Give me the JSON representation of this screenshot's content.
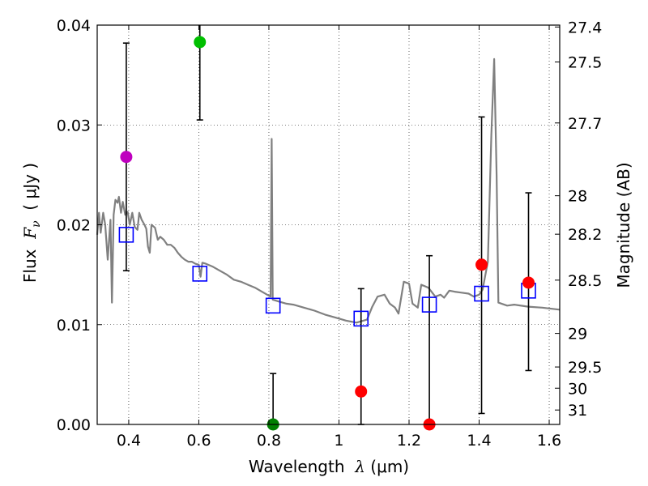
{
  "chart_data": {
    "type": "scatter",
    "xlabel": "Wavelength",
    "xlabel_symbol": "λ",
    "xlabel_unit": "(μm)",
    "ylabel": "Flux",
    "ylabel_symbol": "F",
    "ylabel_sub": "ν",
    "ylabel_unit": "( μJy )",
    "ylabel_right": "Magnitude (AB)",
    "xlim": [
      0.31,
      1.63
    ],
    "ylim": [
      0,
      0.04
    ],
    "grid": true,
    "x_ticks": [
      {
        "value": 0.4,
        "label": "0.4"
      },
      {
        "value": 0.6,
        "label": "0.6"
      },
      {
        "value": 0.8,
        "label": "0.8"
      },
      {
        "value": 1.0,
        "label": "1"
      },
      {
        "value": 1.2,
        "label": "1.2"
      },
      {
        "value": 1.4,
        "label": "1.4"
      },
      {
        "value": 1.6,
        "label": "1.6"
      }
    ],
    "y_ticks": [
      {
        "value": 0.0,
        "label": "0.00"
      },
      {
        "value": 0.01,
        "label": "0.01"
      },
      {
        "value": 0.02,
        "label": "0.02"
      },
      {
        "value": 0.03,
        "label": "0.03"
      },
      {
        "value": 0.04,
        "label": "0.04"
      }
    ],
    "mag_ticks": [
      {
        "mag": 27.4,
        "label": "27.4"
      },
      {
        "mag": 27.5,
        "label": "27.5"
      },
      {
        "mag": 27.7,
        "label": "27.7"
      },
      {
        "mag": 28,
        "label": "28"
      },
      {
        "mag": 28.2,
        "label": "28.2"
      },
      {
        "mag": 28.5,
        "label": "28.5"
      },
      {
        "mag": 29,
        "label": "29"
      },
      {
        "mag": 29.5,
        "label": "29.5"
      },
      {
        "mag": 30,
        "label": "30"
      },
      {
        "mag": 31,
        "label": "31"
      }
    ],
    "observed": [
      {
        "x": 0.393,
        "y": 0.0268,
        "err_lo": 0.0154,
        "err_hi": 0.0382,
        "color": "#bf00bf"
      },
      {
        "x": 0.603,
        "y": 0.0383,
        "err_lo": 0.0305,
        "err_hi": 0.0405,
        "color": "#00bf00"
      },
      {
        "x": 0.812,
        "y": 0.0,
        "err_lo": 0.0,
        "err_hi": 0.0051,
        "color": "#008000"
      },
      {
        "x": 1.063,
        "y": 0.0033,
        "err_lo": 0.0,
        "err_hi": 0.0136,
        "color": "#ff0000"
      },
      {
        "x": 1.258,
        "y": 0.0,
        "err_lo": 0.0,
        "err_hi": 0.0169,
        "color": "#ff0000"
      },
      {
        "x": 1.407,
        "y": 0.016,
        "err_lo": 0.0011,
        "err_hi": 0.0308,
        "color": "#ff0000"
      },
      {
        "x": 1.541,
        "y": 0.0142,
        "err_lo": 0.0054,
        "err_hi": 0.0232,
        "color": "#ff0000"
      }
    ],
    "model_photometry": [
      {
        "x": 0.393,
        "y": 0.019
      },
      {
        "x": 0.603,
        "y": 0.0151
      },
      {
        "x": 0.812,
        "y": 0.0119
      },
      {
        "x": 1.063,
        "y": 0.0106
      },
      {
        "x": 1.258,
        "y": 0.012
      },
      {
        "x": 1.407,
        "y": 0.0131
      },
      {
        "x": 1.541,
        "y": 0.0134
      }
    ],
    "sed_line": [
      [
        0.31,
        0.019
      ],
      [
        0.315,
        0.0212
      ],
      [
        0.32,
        0.0192
      ],
      [
        0.327,
        0.0212
      ],
      [
        0.333,
        0.02
      ],
      [
        0.34,
        0.0165
      ],
      [
        0.348,
        0.0205
      ],
      [
        0.352,
        0.0122
      ],
      [
        0.357,
        0.021
      ],
      [
        0.362,
        0.0225
      ],
      [
        0.368,
        0.0222
      ],
      [
        0.372,
        0.0228
      ],
      [
        0.378,
        0.0212
      ],
      [
        0.383,
        0.0223
      ],
      [
        0.39,
        0.021
      ],
      [
        0.397,
        0.0213
      ],
      [
        0.403,
        0.02
      ],
      [
        0.41,
        0.0212
      ],
      [
        0.417,
        0.0198
      ],
      [
        0.425,
        0.0195
      ],
      [
        0.43,
        0.0212
      ],
      [
        0.437,
        0.0205
      ],
      [
        0.445,
        0.02
      ],
      [
        0.45,
        0.0196
      ],
      [
        0.455,
        0.0178
      ],
      [
        0.46,
        0.0172
      ],
      [
        0.465,
        0.02
      ],
      [
        0.475,
        0.0197
      ],
      [
        0.483,
        0.0185
      ],
      [
        0.49,
        0.0188
      ],
      [
        0.5,
        0.0185
      ],
      [
        0.51,
        0.018
      ],
      [
        0.52,
        0.018
      ],
      [
        0.53,
        0.0177
      ],
      [
        0.54,
        0.0172
      ],
      [
        0.55,
        0.0168
      ],
      [
        0.56,
        0.0165
      ],
      [
        0.57,
        0.0163
      ],
      [
        0.58,
        0.0163
      ],
      [
        0.59,
        0.0161
      ],
      [
        0.6,
        0.016
      ],
      [
        0.605,
        0.0148
      ],
      [
        0.61,
        0.0162
      ],
      [
        0.62,
        0.0161
      ],
      [
        0.64,
        0.0158
      ],
      [
        0.66,
        0.0154
      ],
      [
        0.68,
        0.015
      ],
      [
        0.7,
        0.0145
      ],
      [
        0.72,
        0.0143
      ],
      [
        0.74,
        0.014
      ],
      [
        0.76,
        0.0137
      ],
      [
        0.78,
        0.0133
      ],
      [
        0.795,
        0.013
      ],
      [
        0.805,
        0.0128
      ],
      [
        0.808,
        0.0286
      ],
      [
        0.811,
        0.0125
      ],
      [
        0.83,
        0.0123
      ],
      [
        0.85,
        0.0121
      ],
      [
        0.87,
        0.012
      ],
      [
        0.9,
        0.0117
      ],
      [
        0.93,
        0.0114
      ],
      [
        0.96,
        0.011
      ],
      [
        0.99,
        0.0107
      ],
      [
        1.02,
        0.0104
      ],
      [
        1.05,
        0.0102
      ],
      [
        1.08,
        0.0105
      ],
      [
        1.095,
        0.0118
      ],
      [
        1.11,
        0.0128
      ],
      [
        1.13,
        0.013
      ],
      [
        1.145,
        0.0121
      ],
      [
        1.16,
        0.0117
      ],
      [
        1.17,
        0.0111
      ],
      [
        1.185,
        0.0143
      ],
      [
        1.2,
        0.0141
      ],
      [
        1.21,
        0.0121
      ],
      [
        1.225,
        0.0117
      ],
      [
        1.235,
        0.014
      ],
      [
        1.255,
        0.0137
      ],
      [
        1.275,
        0.0128
      ],
      [
        1.29,
        0.013
      ],
      [
        1.3,
        0.0127
      ],
      [
        1.315,
        0.0134
      ],
      [
        1.33,
        0.0133
      ],
      [
        1.35,
        0.0132
      ],
      [
        1.37,
        0.0131
      ],
      [
        1.385,
        0.0128
      ],
      [
        1.4,
        0.013
      ],
      [
        1.41,
        0.0135
      ],
      [
        1.425,
        0.0163
      ],
      [
        1.435,
        0.029
      ],
      [
        1.443,
        0.0366
      ],
      [
        1.45,
        0.025
      ],
      [
        1.455,
        0.0122
      ],
      [
        1.48,
        0.0119
      ],
      [
        1.5,
        0.012
      ],
      [
        1.54,
        0.0118
      ],
      [
        1.58,
        0.0117
      ],
      [
        1.63,
        0.0115
      ]
    ]
  }
}
